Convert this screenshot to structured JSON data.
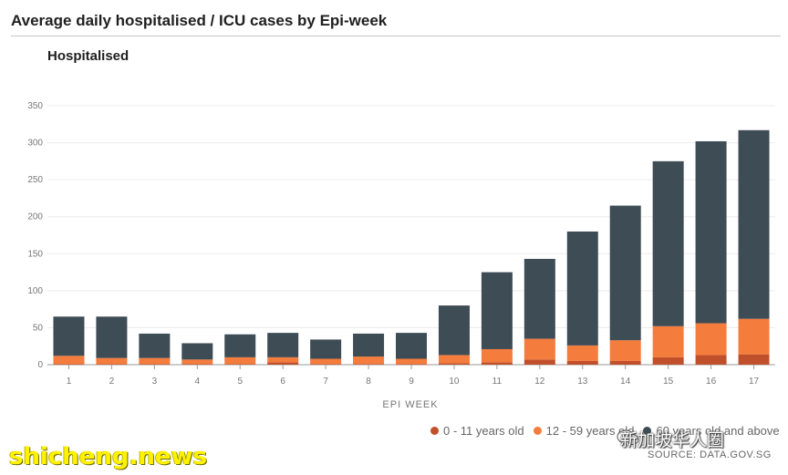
{
  "header": {
    "title": "Average daily hospitalised / ICU cases by Epi-week"
  },
  "chart_data": {
    "type": "bar",
    "stacked": true,
    "title": "Hospitalised",
    "xlabel": "EPI WEEK",
    "ylabel": "",
    "ylim": [
      0,
      350
    ],
    "yticks": [
      0,
      50,
      100,
      150,
      200,
      250,
      300,
      350
    ],
    "grid": true,
    "legend_position": "bottom-right",
    "categories": [
      "1",
      "2",
      "3",
      "4",
      "5",
      "6",
      "7",
      "8",
      "9",
      "10",
      "11",
      "12",
      "13",
      "14",
      "15",
      "16",
      "17"
    ],
    "series": [
      {
        "name": "0 - 11 years old",
        "color": "#c0502c",
        "values": [
          1,
          1,
          1,
          1,
          1,
          3,
          1,
          1,
          1,
          2,
          3,
          7,
          5,
          5,
          10,
          13,
          14
        ]
      },
      {
        "name": "12 - 59 years old",
        "color": "#f47c3c",
        "values": [
          11,
          8,
          8,
          6,
          9,
          7,
          7,
          10,
          7,
          11,
          18,
          28,
          21,
          28,
          42,
          43,
          48
        ]
      },
      {
        "name": "60 years old and above",
        "color": "#3e4c55",
        "values": [
          53,
          56,
          33,
          22,
          31,
          33,
          26,
          31,
          35,
          67,
          104,
          108,
          154,
          182,
          223,
          246,
          255
        ]
      }
    ]
  },
  "legend": {
    "items": [
      {
        "label": "0 - 11 years old",
        "color": "#c0502c"
      },
      {
        "label": "12 - 59 years old",
        "color": "#f47c3c"
      },
      {
        "label": "60 years old and above",
        "color": "#3e4c55"
      }
    ]
  },
  "watermarks": {
    "left": "shicheng.news",
    "right": "新加坡华人圈",
    "source": "SOURCE: DATA.GOV.SG",
    "icon": "wechat-icon"
  }
}
